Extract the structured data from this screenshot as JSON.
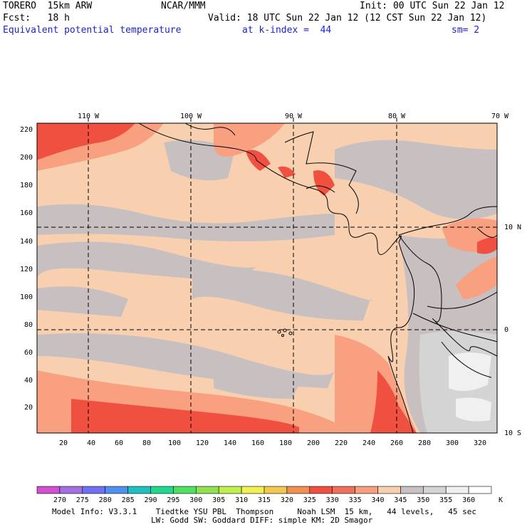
{
  "header": {
    "model": "TORERO  15km ARW",
    "org": "NCAR/MMM",
    "init": "Init: 00 UTC Sun 22 Jan 12",
    "fcst": "Fcst:   18 h",
    "valid": "Valid: 18 UTC Sun 22 Jan 12 (12 CST Sun 22 Jan 12)",
    "field": "Equivalent potential temperature",
    "level": "at k-index =  44",
    "smooth": "sm= 2"
  },
  "map": {
    "lon_labels": [
      "110 W",
      "100 W",
      "90 W",
      "80 W",
      "70 W"
    ],
    "lat_labels": [
      "10 N",
      "0",
      "10 S"
    ],
    "y_ticks": [
      "20",
      "40",
      "60",
      "80",
      "100",
      "120",
      "140",
      "160",
      "180",
      "200",
      "220"
    ],
    "x_ticks": [
      "20",
      "40",
      "60",
      "80",
      "100",
      "120",
      "140",
      "160",
      "180",
      "200",
      "220",
      "240",
      "260",
      "280",
      "300",
      "320"
    ]
  },
  "colorbar": {
    "labels": [
      "270",
      "275",
      "280",
      "285",
      "290",
      "295",
      "300",
      "305",
      "310",
      "315",
      "320",
      "325",
      "330",
      "335",
      "340",
      "345",
      "350",
      "355",
      "360"
    ],
    "unit": "K",
    "colors": [
      "#d050d0",
      "#a070e0",
      "#7070f0",
      "#5090f0",
      "#20c0c0",
      "#20d890",
      "#50e060",
      "#90e050",
      "#c0f050",
      "#f0f050",
      "#f0c850",
      "#f09050",
      "#f05040",
      "#f07060",
      "#f8a080",
      "#f8d0b0",
      "#c8c0c0",
      "#d4d4d4",
      "#f0f0f0",
      "#ffffff"
    ]
  },
  "footer": {
    "line1": "Model Info: V3.3.1    Tiedtke YSU PBL  Thompson     Noah LSM  15 km,   44 levels,   45 sec",
    "line2": "LW: Godd SW: Goddard DIFF: simple KM: 2D Smagor"
  }
}
